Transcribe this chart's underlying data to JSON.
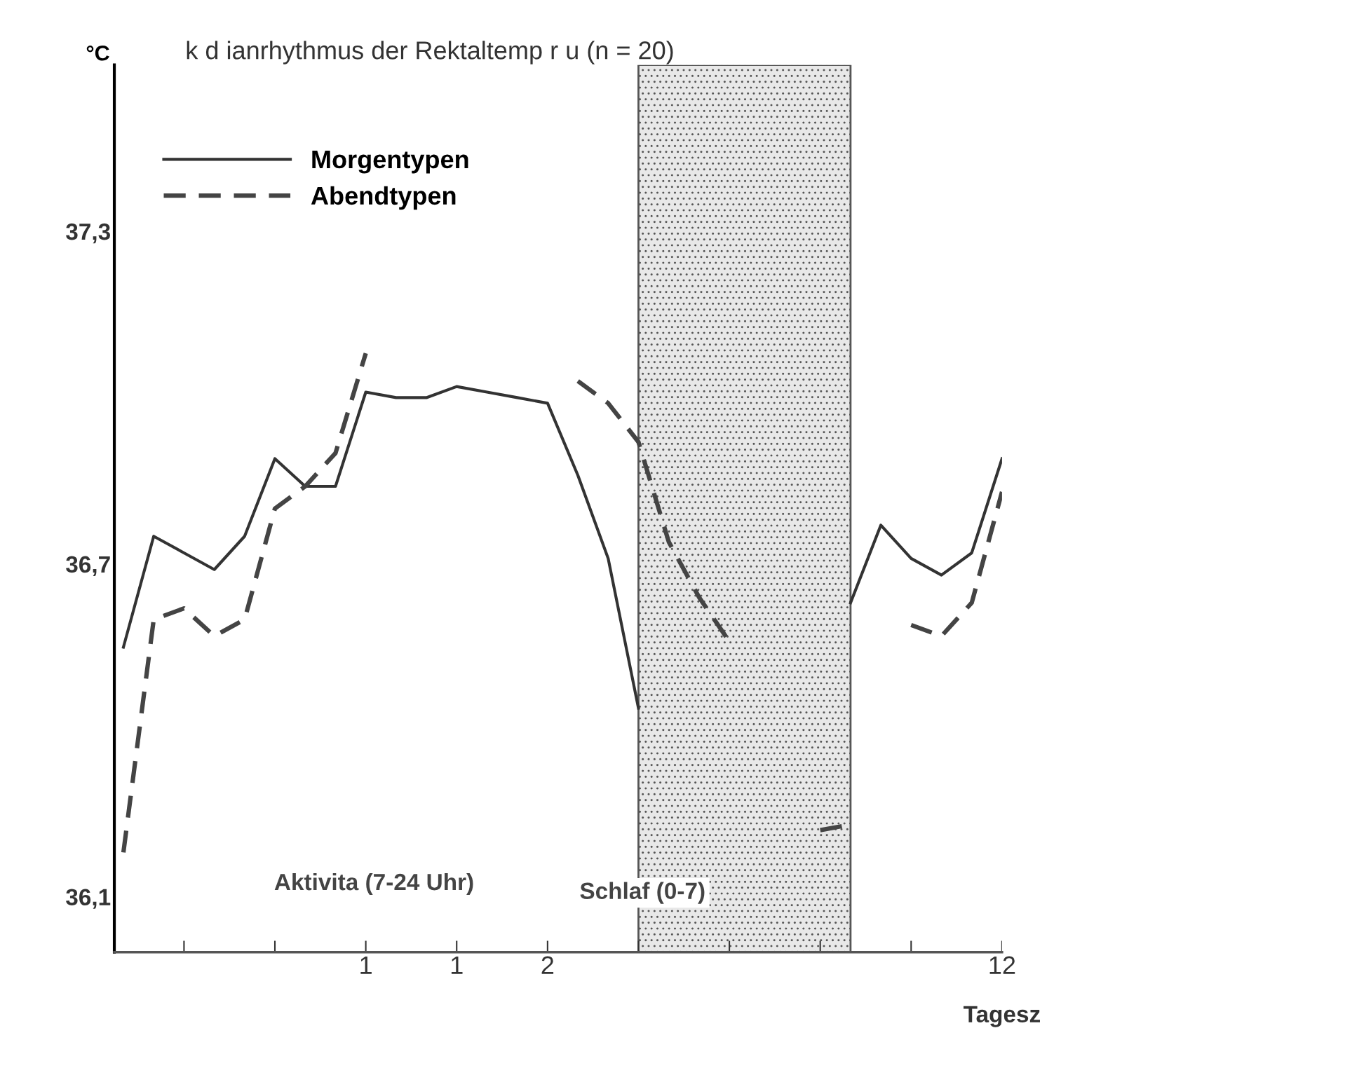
{
  "chart_data": {
    "type": "line",
    "title": "k d ianrhythmus der Rektaltemp r u (n = 20)",
    "ylabel": "°C",
    "xlabel": "Tagesz",
    "categories": [
      null,
      null,
      null,
      null,
      null,
      null,
      null,
      null,
      "1",
      null,
      null,
      "1",
      null,
      null,
      "2",
      null,
      null,
      null,
      null,
      null,
      null,
      null,
      null,
      null,
      null,
      null,
      null,
      null,
      null,
      "12"
    ],
    "series": [
      {
        "name": "Morgentypen",
        "color": "#333333",
        "line_style": "solid",
        "values": [
          36.55,
          36.75,
          36.72,
          36.69,
          36.75,
          36.89,
          36.84,
          36.84,
          37.01,
          37.0,
          37.0,
          37.02,
          37.01,
          37.0,
          36.99,
          36.86,
          36.71,
          36.44,
          null,
          null,
          null,
          null,
          null,
          null,
          36.63,
          36.77,
          36.71,
          36.68,
          36.72,
          36.89
        ]
      },
      {
        "name": "Abendtypen",
        "color": "#444444",
        "line_style": "dashed",
        "values": [
          36.18,
          36.6,
          36.62,
          36.57,
          36.6,
          36.8,
          36.84,
          36.9,
          37.08,
          null,
          null,
          null,
          null,
          null,
          null,
          37.03,
          36.99,
          36.92,
          36.74,
          36.64,
          36.56,
          null,
          null,
          36.22,
          36.23,
          null,
          36.59,
          36.57,
          36.63,
          36.83
        ]
      }
    ],
    "ylim": [
      36.0,
      37.6
    ],
    "yticks": [
      {
        "value": 36.1,
        "label": "36,1"
      },
      {
        "value": 36.7,
        "label": "36,7"
      },
      {
        "value": 37.3,
        "label": "37,3"
      }
    ],
    "annotations": [
      "Aktivita (7-24 Uhr)",
      "Schlaf (0-7)"
    ],
    "legend": "top left",
    "grid": false
  }
}
